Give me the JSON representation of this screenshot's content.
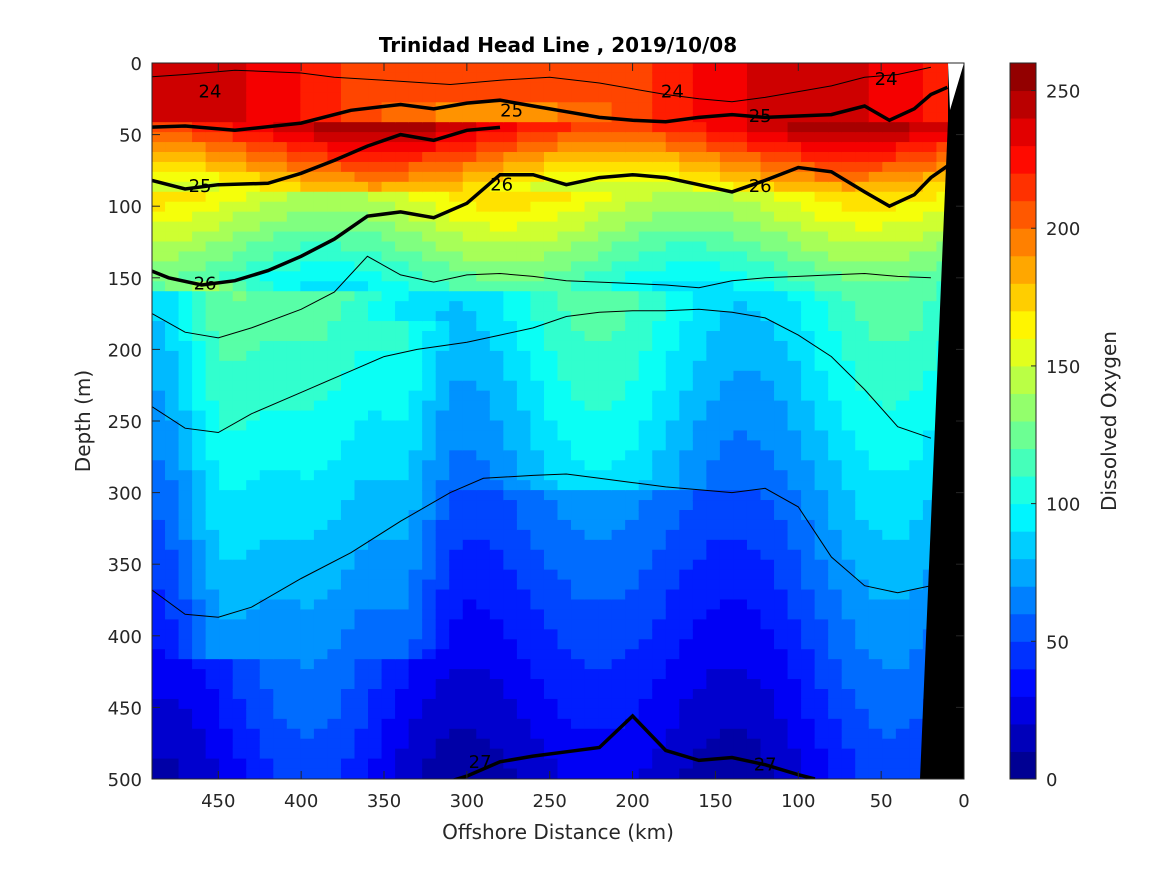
{
  "chart_data": {
    "type": "heatmap",
    "title": "Trinidad Head Line , 2019/10/08",
    "xlabel": "Offshore Distance (km)",
    "ylabel": "Depth (m)",
    "colorbar_label": "Dissolved Oxygen",
    "xlim": [
      490,
      0
    ],
    "ylim": [
      500,
      0
    ],
    "x_ticks": [
      "450",
      "400",
      "350",
      "300",
      "250",
      "200",
      "150",
      "100",
      "50",
      "0"
    ],
    "y_ticks": [
      "0",
      "50",
      "100",
      "150",
      "200",
      "250",
      "300",
      "350",
      "400",
      "450",
      "500"
    ],
    "colorbar_ticks": [
      "250",
      "200",
      "150",
      "100",
      "50",
      "0"
    ],
    "colorbar_range": [
      0,
      260
    ],
    "colormap": "jet",
    "contour_lines": [
      {
        "level": "24",
        "points": [
          [
            495,
            10
          ],
          [
            470,
            8
          ],
          [
            440,
            5
          ],
          [
            400,
            7
          ],
          [
            380,
            10
          ],
          [
            350,
            12
          ],
          [
            310,
            15
          ],
          [
            280,
            12
          ],
          [
            250,
            10
          ],
          [
            220,
            14
          ],
          [
            200,
            18
          ],
          [
            180,
            22
          ],
          [
            160,
            25
          ],
          [
            140,
            27
          ],
          [
            120,
            24
          ],
          [
            100,
            20
          ],
          [
            80,
            16
          ],
          [
            60,
            10
          ],
          [
            40,
            8
          ],
          [
            20,
            3
          ]
        ],
        "bold": false,
        "labels": [
          [
            455,
            20
          ],
          [
            176,
            20
          ],
          [
            47,
            11
          ]
        ]
      },
      {
        "level": "25",
        "points": [
          [
            495,
            45
          ],
          [
            470,
            44
          ],
          [
            440,
            47
          ],
          [
            400,
            42
          ],
          [
            370,
            33
          ],
          [
            340,
            29
          ],
          [
            320,
            32
          ],
          [
            300,
            28
          ],
          [
            280,
            26
          ],
          [
            260,
            30
          ],
          [
            240,
            34
          ],
          [
            220,
            38
          ],
          [
            200,
            40
          ],
          [
            180,
            41
          ],
          [
            160,
            38
          ],
          [
            140,
            36
          ],
          [
            120,
            38
          ],
          [
            100,
            37
          ],
          [
            80,
            36
          ],
          [
            60,
            30
          ],
          [
            45,
            40
          ],
          [
            30,
            32
          ],
          [
            20,
            22
          ],
          [
            10,
            17
          ]
        ],
        "bold": true,
        "labels": [
          [
            273,
            33
          ],
          [
            123,
            37
          ]
        ]
      },
      {
        "level": "25",
        "points": [
          [
            490,
            82
          ],
          [
            470,
            88
          ],
          [
            450,
            85
          ],
          [
            420,
            84
          ],
          [
            400,
            77
          ],
          [
            380,
            68
          ],
          [
            360,
            58
          ],
          [
            340,
            50
          ],
          [
            320,
            54
          ],
          [
            300,
            47
          ],
          [
            280,
            45
          ]
        ],
        "bold": true,
        "labels": [
          [
            461,
            86
          ]
        ]
      },
      {
        "level": "26",
        "points": [
          [
            495,
            143
          ],
          [
            480,
            150
          ],
          [
            460,
            155
          ],
          [
            440,
            152
          ],
          [
            420,
            145
          ],
          [
            400,
            135
          ],
          [
            380,
            123
          ],
          [
            360,
            107
          ],
          [
            340,
            104
          ],
          [
            320,
            108
          ],
          [
            300,
            98
          ],
          [
            280,
            78
          ],
          [
            260,
            78
          ],
          [
            240,
            85
          ],
          [
            220,
            80
          ],
          [
            200,
            78
          ],
          [
            180,
            80
          ],
          [
            160,
            85
          ],
          [
            140,
            90
          ],
          [
            120,
            82
          ],
          [
            100,
            73
          ],
          [
            80,
            76
          ],
          [
            60,
            90
          ],
          [
            45,
            100
          ],
          [
            30,
            92
          ],
          [
            20,
            80
          ],
          [
            10,
            72
          ]
        ],
        "bold": true,
        "labels": [
          [
            458,
            154
          ],
          [
            279,
            85
          ],
          [
            123,
            86
          ]
        ]
      },
      {
        "level": "27",
        "points": [
          [
            320,
            505
          ],
          [
            300,
            498
          ],
          [
            280,
            488
          ],
          [
            260,
            484
          ],
          [
            240,
            481
          ],
          [
            220,
            478
          ],
          [
            200,
            456
          ],
          [
            180,
            480
          ],
          [
            160,
            487
          ],
          [
            140,
            485
          ],
          [
            120,
            490
          ],
          [
            100,
            497
          ],
          [
            90,
            500
          ]
        ],
        "bold": true,
        "labels": [
          [
            292,
            488
          ],
          [
            120,
            490
          ]
        ]
      }
    ],
    "thin_contours": [
      [
        [
          490,
          175
        ],
        [
          470,
          188
        ],
        [
          450,
          192
        ],
        [
          430,
          185
        ],
        [
          400,
          172
        ],
        [
          380,
          160
        ],
        [
          360,
          135
        ],
        [
          340,
          148
        ],
        [
          320,
          153
        ],
        [
          300,
          148
        ],
        [
          280,
          147
        ],
        [
          260,
          149
        ],
        [
          240,
          152
        ],
        [
          220,
          153
        ],
        [
          200,
          154
        ],
        [
          180,
          155
        ],
        [
          160,
          157
        ],
        [
          140,
          152
        ],
        [
          120,
          150
        ],
        [
          100,
          149
        ],
        [
          80,
          148
        ],
        [
          60,
          147
        ],
        [
          40,
          149
        ],
        [
          20,
          150
        ]
      ],
      [
        [
          490,
          240
        ],
        [
          470,
          255
        ],
        [
          450,
          258
        ],
        [
          430,
          245
        ],
        [
          400,
          230
        ],
        [
          370,
          215
        ],
        [
          350,
          205
        ],
        [
          330,
          200
        ],
        [
          300,
          195
        ],
        [
          280,
          190
        ],
        [
          260,
          185
        ],
        [
          240,
          177
        ],
        [
          220,
          174
        ],
        [
          200,
          173
        ],
        [
          180,
          173
        ],
        [
          160,
          172
        ],
        [
          140,
          174
        ],
        [
          120,
          178
        ],
        [
          100,
          190
        ],
        [
          80,
          205
        ],
        [
          60,
          228
        ],
        [
          40,
          254
        ],
        [
          20,
          262
        ]
      ],
      [
        [
          490,
          368
        ],
        [
          470,
          385
        ],
        [
          450,
          387
        ],
        [
          430,
          380
        ],
        [
          400,
          360
        ],
        [
          370,
          342
        ],
        [
          340,
          320
        ],
        [
          310,
          300
        ],
        [
          290,
          290
        ],
        [
          260,
          288
        ],
        [
          240,
          287
        ],
        [
          220,
          290
        ],
        [
          200,
          293
        ],
        [
          180,
          296
        ],
        [
          160,
          298
        ],
        [
          140,
          300
        ],
        [
          120,
          297
        ],
        [
          100,
          310
        ],
        [
          80,
          345
        ],
        [
          60,
          365
        ],
        [
          40,
          370
        ],
        [
          20,
          365
        ]
      ]
    ]
  }
}
